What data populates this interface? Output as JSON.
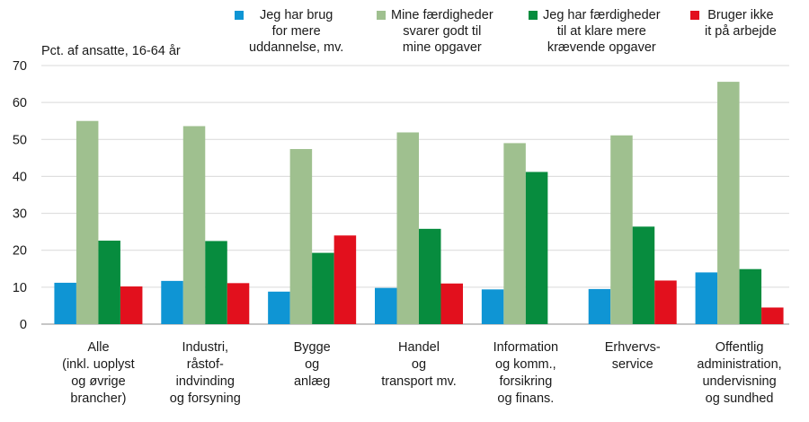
{
  "chart_data": {
    "type": "bar",
    "ylabel": "Pct. af ansatte, 16-64 år",
    "ylim": [
      0,
      70
    ],
    "yticks": [
      0,
      10,
      20,
      30,
      40,
      50,
      60,
      70
    ],
    "grid": true,
    "legend_position": "top",
    "categories": [
      "Alle\n(inkl. uoplyst\nog øvrige\nbrancher)",
      "Industri,\nråstof-\nindvinding\nog forsyning",
      "Bygge\nog\nanlæg",
      "Handel\nog\ntransport mv.",
      "Information\nog komm.,\nforsikring\nog finans.",
      "Erhvervs-\nservice",
      "Offentlig\nadministration,\nundervisning\nog sundhed"
    ],
    "series": [
      {
        "name": "Jeg har brug\nfor mere\nuddannelse, mv.",
        "color": "#0f95d4",
        "values": [
          11.2,
          11.7,
          8.8,
          9.8,
          9.4,
          9.5,
          14.0
        ]
      },
      {
        "name": "Mine færdigheder\nsvarer godt til\nmine opgaver",
        "color": "#9fc08f",
        "values": [
          55.0,
          53.6,
          47.4,
          51.9,
          49.0,
          51.1,
          65.6
        ]
      },
      {
        "name": "Jeg har færdigheder\ntil at klare mere\nkrævende opgaver",
        "color": "#078c3e",
        "values": [
          22.6,
          22.5,
          19.3,
          25.8,
          41.2,
          26.4,
          14.9
        ]
      },
      {
        "name": "Bruger ikke\nit på arbejde",
        "color": "#e2101d",
        "values": [
          10.2,
          11.1,
          24.0,
          11.0,
          null,
          11.8,
          4.5
        ]
      }
    ]
  }
}
